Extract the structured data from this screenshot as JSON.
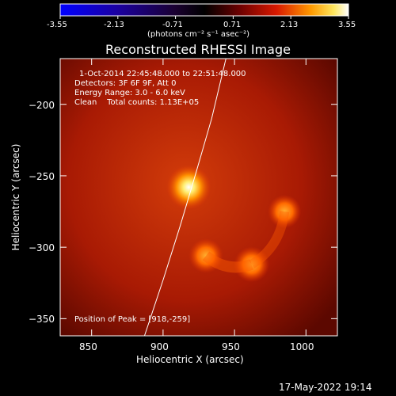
{
  "colorbar": {
    "ticks": [
      "-3.55",
      "-2.13",
      "-0.71",
      "0.71",
      "2.13",
      "3.55"
    ],
    "unit_label": "(photons cm⁻² s⁻¹ asec⁻²)",
    "colors": [
      "#0000ff",
      "#000000",
      "#ffffff"
    ]
  },
  "chart_data": {
    "type": "heatmap",
    "title": "Reconstructed RHESSI Image",
    "xlabel": "Heliocentric X (arcsec)",
    "ylabel": "Heliocentric Y (arcsec)",
    "xlim": [
      828,
      1022
    ],
    "ylim": [
      -362,
      -168
    ],
    "x_ticks": [
      850,
      900,
      950,
      1000
    ],
    "y_ticks": [
      -350,
      -300,
      -250,
      -200
    ],
    "x_tick_labels": [
      "850",
      "900",
      "950",
      "1000"
    ],
    "y_tick_labels": [
      "−350",
      "−300",
      "−250",
      "−200"
    ],
    "annotations": [
      "1-Oct-2014 22:45:48.000 to 22:51:48.000",
      "Detectors: 3F 6F 9F, Att 0",
      "Energy Range: 3.0 - 6.0 keV",
      "Clean    Total counts: 1.13E+05"
    ],
    "peak_label": "Position of Peak = [918,-259]",
    "peak": [
      918,
      -259
    ],
    "sources": [
      {
        "x": 918,
        "y": -258,
        "intensity": 1.0
      },
      {
        "x": 930,
        "y": -306,
        "intensity": 0.55
      },
      {
        "x": 962,
        "y": -312,
        "intensity": 0.6
      },
      {
        "x": 985,
        "y": -275,
        "intensity": 0.5
      }
    ],
    "limb_curve": [
      [
        887,
        -362
      ],
      [
        900,
        -323
      ],
      [
        912,
        -285
      ],
      [
        923,
        -248
      ],
      [
        934,
        -210
      ],
      [
        944,
        -168
      ]
    ],
    "grid": false
  },
  "footer": {
    "timestamp": "17-May-2022 19:14"
  }
}
